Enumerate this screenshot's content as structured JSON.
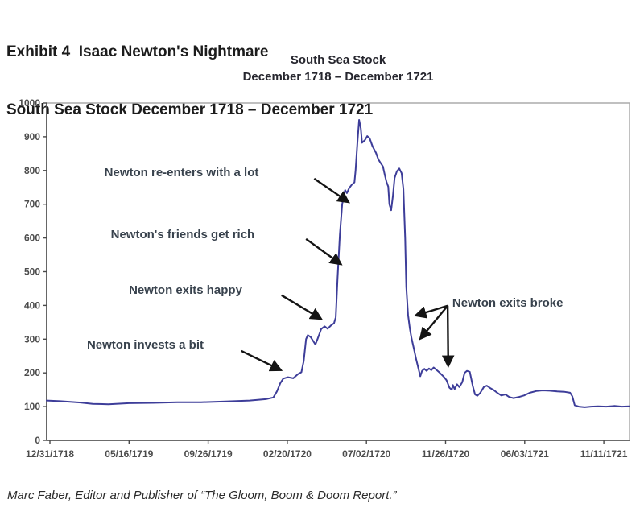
{
  "page": {
    "heading_line1": "Exhibit 4  Isaac Newton's Nightmare",
    "heading_line2": "South Sea Stock December 1718 – December 1721",
    "footer": "Marc Faber, Editor and Publisher of “The Gloom, Boom & Doom Report.”"
  },
  "chart_data": {
    "type": "line",
    "title": "South Sea Stock",
    "subtitle": "December 1718 – December 1721",
    "xlabel": "",
    "ylabel": "",
    "ylim": [
      0,
      1000
    ],
    "ytick_step": 100,
    "grid": false,
    "legend": "none",
    "line_color": "#3d3d99",
    "axis_color": "#4a4a4a",
    "box_color": "#ababab",
    "arrow_color": "#141414",
    "x_tick_labels": [
      "12/31/1718",
      "05/16/1719",
      "09/26/1719",
      "02/20/1720",
      "07/02/1720",
      "11/26/1720",
      "06/03/1721",
      "11/11/1721"
    ],
    "series": [
      {
        "name": "South Sea Stock",
        "points": [
          [
            0.0,
            118
          ],
          [
            0.023,
            116
          ],
          [
            0.058,
            112
          ],
          [
            0.079,
            108
          ],
          [
            0.106,
            107
          ],
          [
            0.141,
            110
          ],
          [
            0.182,
            111
          ],
          [
            0.224,
            113
          ],
          [
            0.265,
            113
          ],
          [
            0.307,
            115
          ],
          [
            0.348,
            118
          ],
          [
            0.376,
            122
          ],
          [
            0.389,
            127
          ],
          [
            0.395,
            145
          ],
          [
            0.401,
            170
          ],
          [
            0.406,
            183
          ],
          [
            0.414,
            187
          ],
          [
            0.423,
            184
          ],
          [
            0.431,
            196
          ],
          [
            0.437,
            202
          ],
          [
            0.441,
            235
          ],
          [
            0.445,
            300
          ],
          [
            0.448,
            312
          ],
          [
            0.453,
            306
          ],
          [
            0.457,
            295
          ],
          [
            0.461,
            284
          ],
          [
            0.465,
            302
          ],
          [
            0.471,
            330
          ],
          [
            0.477,
            338
          ],
          [
            0.482,
            331
          ],
          [
            0.488,
            341
          ],
          [
            0.493,
            347
          ],
          [
            0.496,
            365
          ],
          [
            0.499,
            480
          ],
          [
            0.503,
            610
          ],
          [
            0.507,
            700
          ],
          [
            0.51,
            728
          ],
          [
            0.512,
            742
          ],
          [
            0.515,
            733
          ],
          [
            0.519,
            748
          ],
          [
            0.523,
            757
          ],
          [
            0.528,
            765
          ],
          [
            0.53,
            800
          ],
          [
            0.533,
            880
          ],
          [
            0.536,
            950
          ],
          [
            0.539,
            925
          ],
          [
            0.541,
            882
          ],
          [
            0.546,
            890
          ],
          [
            0.55,
            902
          ],
          [
            0.554,
            896
          ],
          [
            0.559,
            872
          ],
          [
            0.565,
            852
          ],
          [
            0.569,
            833
          ],
          [
            0.573,
            822
          ],
          [
            0.577,
            812
          ],
          [
            0.58,
            788
          ],
          [
            0.583,
            766
          ],
          [
            0.586,
            752
          ],
          [
            0.588,
            700
          ],
          [
            0.591,
            682
          ],
          [
            0.594,
            725
          ],
          [
            0.597,
            778
          ],
          [
            0.601,
            798
          ],
          [
            0.605,
            806
          ],
          [
            0.609,
            792
          ],
          [
            0.612,
            745
          ],
          [
            0.615,
            600
          ],
          [
            0.617,
            455
          ],
          [
            0.62,
            372
          ],
          [
            0.623,
            332
          ],
          [
            0.626,
            303
          ],
          [
            0.63,
            272
          ],
          [
            0.634,
            240
          ],
          [
            0.638,
            212
          ],
          [
            0.641,
            190
          ],
          [
            0.644,
            206
          ],
          [
            0.648,
            212
          ],
          [
            0.652,
            206
          ],
          [
            0.656,
            213
          ],
          [
            0.66,
            208
          ],
          [
            0.664,
            216
          ],
          [
            0.668,
            210
          ],
          [
            0.674,
            201
          ],
          [
            0.678,
            194
          ],
          [
            0.682,
            187
          ],
          [
            0.686,
            178
          ],
          [
            0.691,
            156
          ],
          [
            0.695,
            150
          ],
          [
            0.697,
            164
          ],
          [
            0.7,
            152
          ],
          [
            0.704,
            166
          ],
          [
            0.708,
            158
          ],
          [
            0.713,
            172
          ],
          [
            0.717,
            200
          ],
          [
            0.721,
            206
          ],
          [
            0.726,
            203
          ],
          [
            0.731,
            162
          ],
          [
            0.735,
            136
          ],
          [
            0.739,
            132
          ],
          [
            0.744,
            141
          ],
          [
            0.75,
            158
          ],
          [
            0.755,
            162
          ],
          [
            0.761,
            155
          ],
          [
            0.766,
            150
          ],
          [
            0.773,
            141
          ],
          [
            0.78,
            133
          ],
          [
            0.787,
            136
          ],
          [
            0.794,
            128
          ],
          [
            0.801,
            125
          ],
          [
            0.809,
            128
          ],
          [
            0.819,
            133
          ],
          [
            0.829,
            141
          ],
          [
            0.84,
            146
          ],
          [
            0.851,
            148
          ],
          [
            0.863,
            147
          ],
          [
            0.876,
            145
          ],
          [
            0.888,
            144
          ],
          [
            0.898,
            141
          ],
          [
            0.902,
            130
          ],
          [
            0.906,
            104
          ],
          [
            0.913,
            100
          ],
          [
            0.923,
            98
          ],
          [
            0.934,
            100
          ],
          [
            0.946,
            101
          ],
          [
            0.96,
            100
          ],
          [
            0.974,
            102
          ],
          [
            0.987,
            100
          ],
          [
            1.0,
            101
          ]
        ]
      }
    ],
    "annotations": [
      {
        "label": "Newton re-enters with a lot",
        "text_pos": [
          0.099,
          795
        ],
        "arrows": [
          [
            0.459,
            776,
            0.518,
            706
          ]
        ]
      },
      {
        "label": "Newton's friends get rich",
        "text_pos": [
          0.11,
          611
        ],
        "arrows": [
          [
            0.445,
            597,
            0.505,
            522
          ]
        ]
      },
      {
        "label": "Newton exits happy",
        "text_pos": [
          0.141,
          446
        ],
        "arrows": [
          [
            0.403,
            430,
            0.471,
            360
          ]
        ]
      },
      {
        "label": "Newton invests a bit",
        "text_pos": [
          0.069,
          284
        ],
        "arrows": [
          [
            0.334,
            265,
            0.402,
            208
          ]
        ]
      },
      {
        "label": "Newton exits broke",
        "text_pos": [
          0.696,
          408
        ],
        "arrows": [
          [
            0.688,
            399,
            0.633,
            370
          ],
          [
            0.688,
            399,
            0.641,
            301
          ],
          [
            0.688,
            399,
            0.689,
            220
          ]
        ]
      }
    ]
  }
}
